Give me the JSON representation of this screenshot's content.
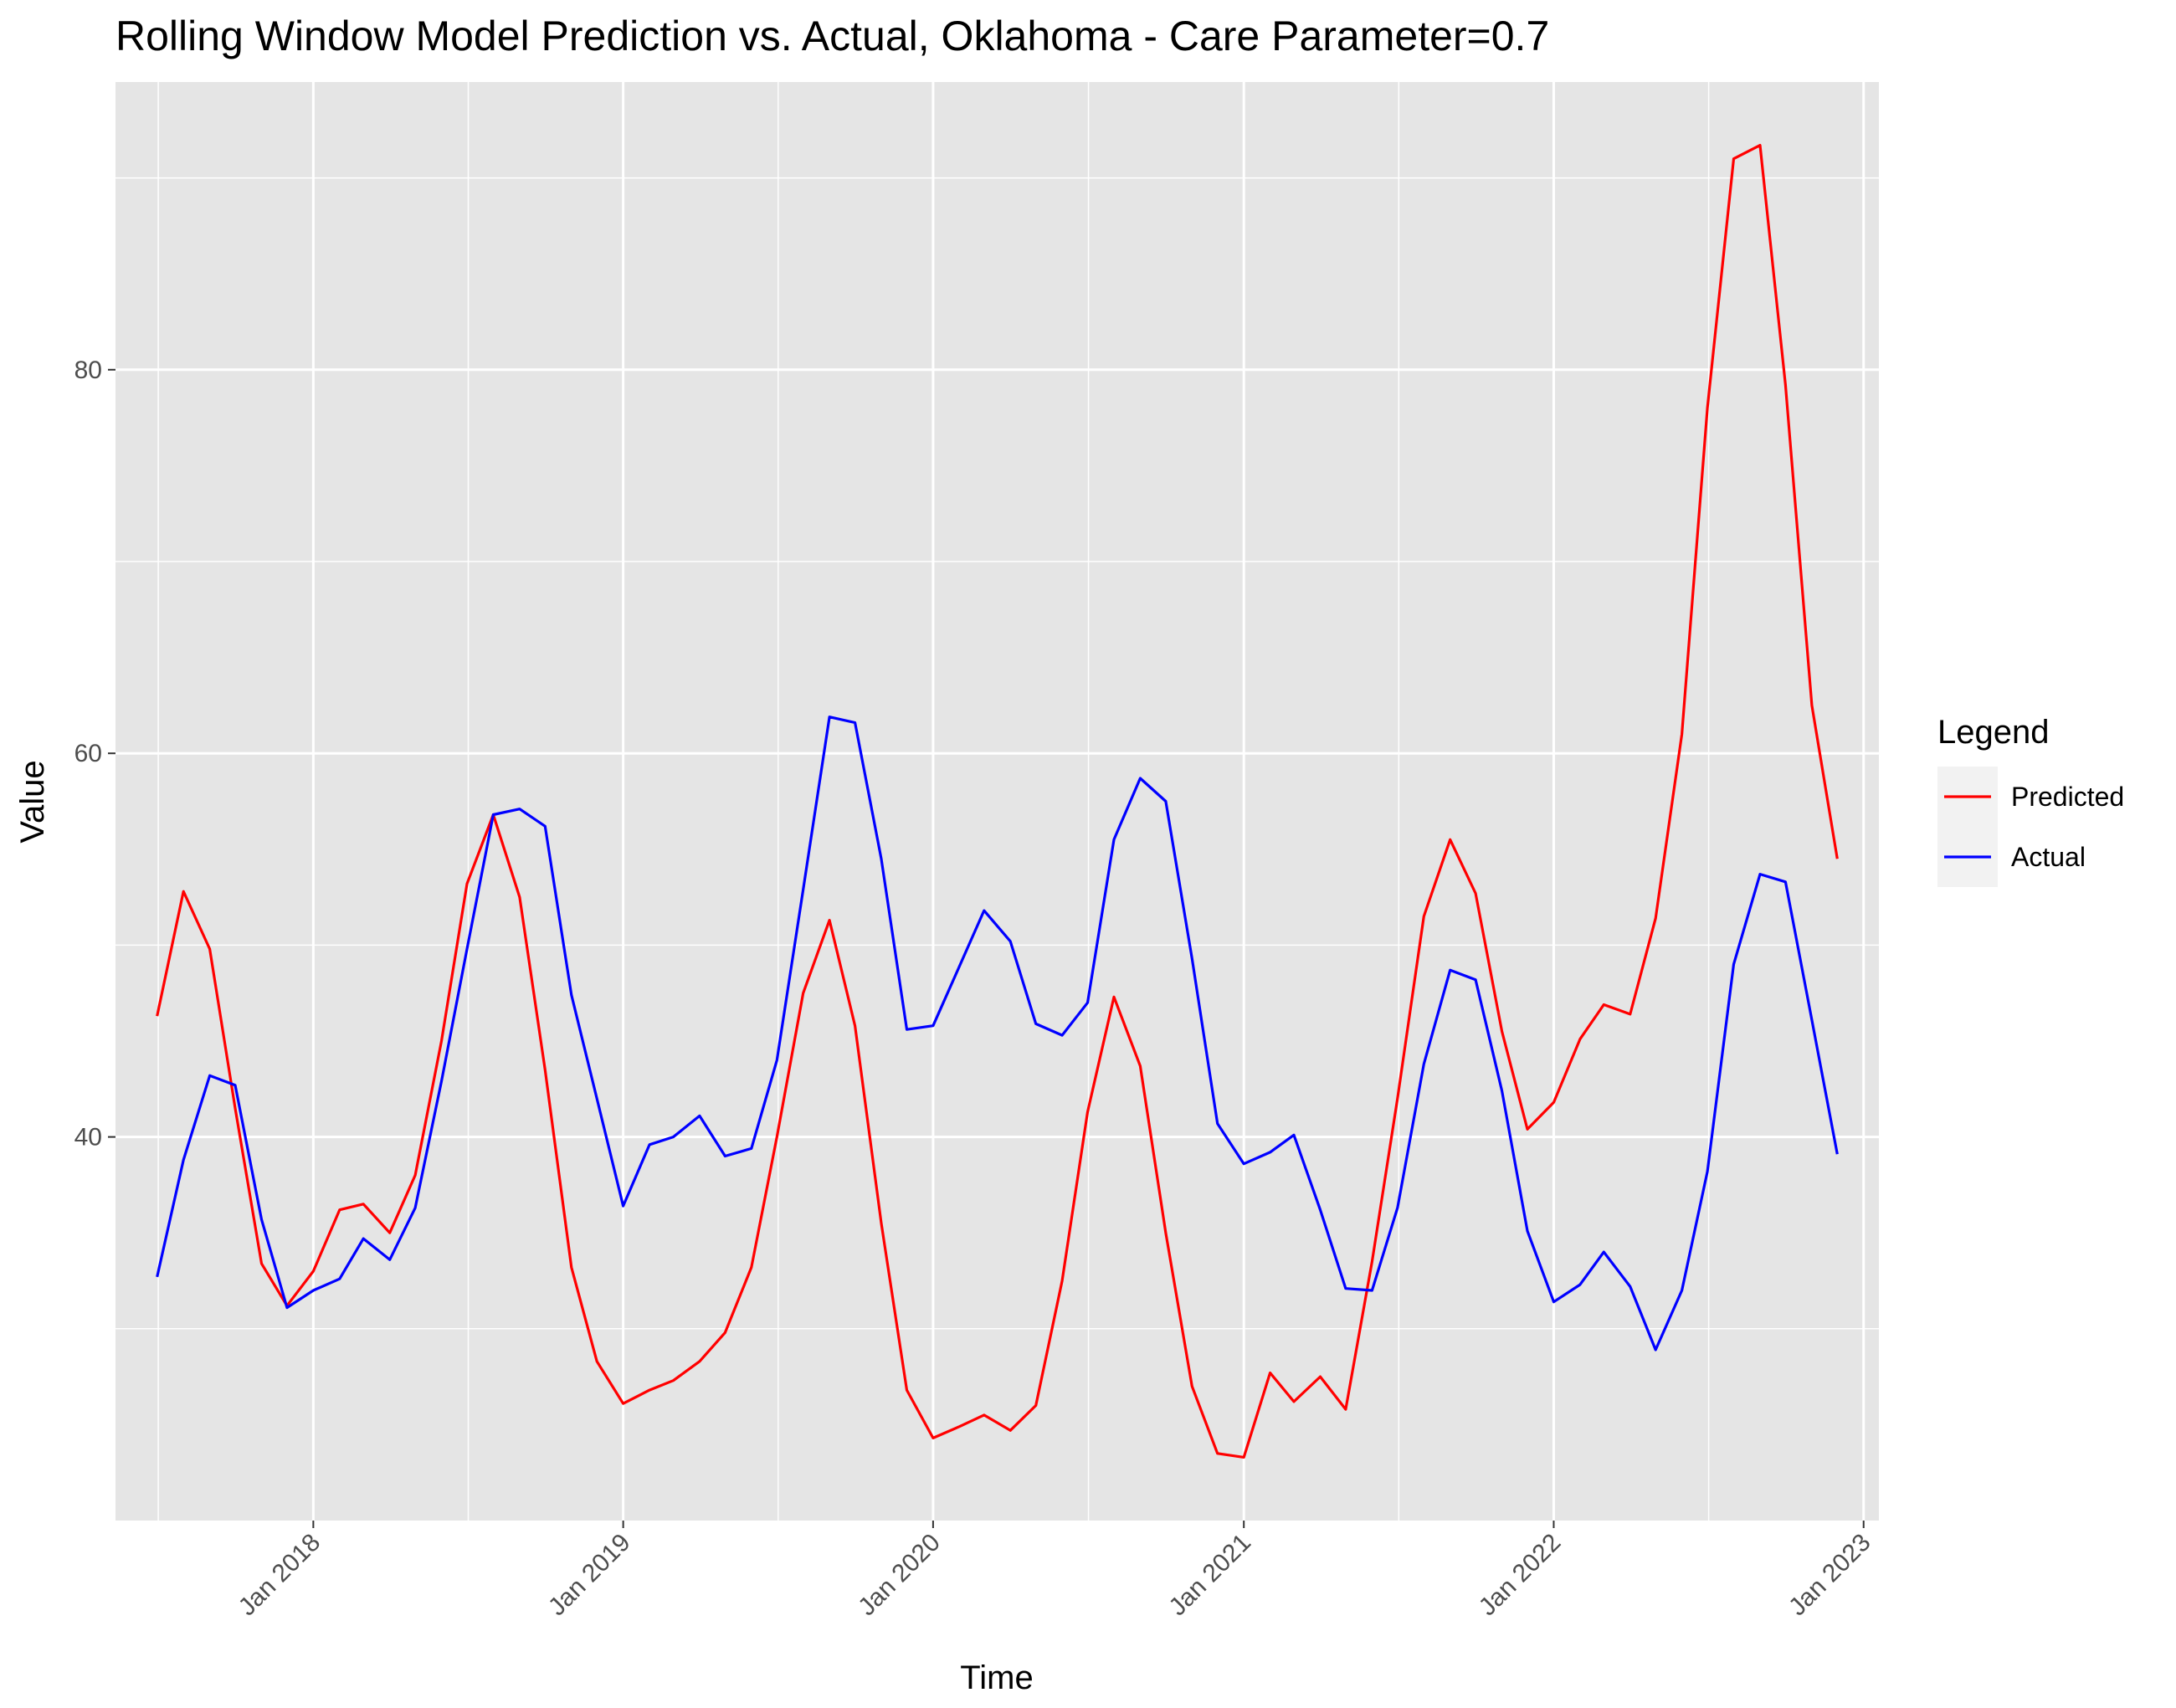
{
  "chart_data": {
    "type": "line",
    "title": "Rolling Window Model Prediction vs. Actual, Oklahoma - Care Parameter=0.7",
    "xlabel": "Time",
    "ylabel": "Value",
    "x_tick_labels": [
      "Jan 2018",
      "Jan 2019",
      "Jan 2020",
      "Jan 2021",
      "Jan 2022",
      "Jan 2023"
    ],
    "y_ticks": [
      40,
      60,
      80
    ],
    "ylim": [
      20,
      95
    ],
    "xlim": [
      "2017-05-13",
      "2023-01-19"
    ],
    "grid": true,
    "legend": {
      "title": "Legend",
      "position": "right"
    },
    "x": [
      "2017-07-01",
      "2017-08-01",
      "2017-09-01",
      "2017-10-01",
      "2017-11-01",
      "2017-12-01",
      "2018-01-01",
      "2018-02-01",
      "2018-03-01",
      "2018-04-01",
      "2018-05-01",
      "2018-06-01",
      "2018-07-01",
      "2018-08-01",
      "2018-09-01",
      "2018-10-01",
      "2018-11-01",
      "2018-12-01",
      "2019-01-01",
      "2019-02-01",
      "2019-03-01",
      "2019-04-01",
      "2019-05-01",
      "2019-06-01",
      "2019-07-01",
      "2019-08-01",
      "2019-09-01",
      "2019-10-01",
      "2019-11-01",
      "2019-12-01",
      "2020-01-01",
      "2020-02-01",
      "2020-03-01",
      "2020-04-01",
      "2020-05-01",
      "2020-06-01",
      "2020-07-01",
      "2020-08-01",
      "2020-09-01",
      "2020-10-01",
      "2020-11-01",
      "2020-12-01",
      "2021-01-01",
      "2021-02-01",
      "2021-03-01",
      "2021-04-01",
      "2021-05-01",
      "2021-06-01",
      "2021-07-01",
      "2021-08-01",
      "2021-09-01",
      "2021-10-01",
      "2021-11-01",
      "2021-12-01",
      "2022-01-01",
      "2022-02-01",
      "2022-03-01",
      "2022-04-01",
      "2022-05-01",
      "2022-06-01",
      "2022-07-01",
      "2022-08-01",
      "2022-09-01",
      "2022-10-01",
      "2022-11-01",
      "2022-12-01"
    ],
    "series": [
      {
        "name": "Predicted",
        "color": "#ff0000",
        "values": [
          46.3,
          52.8,
          49.8,
          41.5,
          33.4,
          31.2,
          33.0,
          36.2,
          36.5,
          35.0,
          38.0,
          45.0,
          53.2,
          56.8,
          52.5,
          43.5,
          33.2,
          28.3,
          26.1,
          26.8,
          27.3,
          28.3,
          29.8,
          33.2,
          40.0,
          47.5,
          51.3,
          45.8,
          35.5,
          26.8,
          24.3,
          24.9,
          25.5,
          24.7,
          26.0,
          32.5,
          41.3,
          47.3,
          43.7,
          35.0,
          27.0,
          23.5,
          23.3,
          27.7,
          26.2,
          27.5,
          25.8,
          33.5,
          42.0,
          51.5,
          55.5,
          52.7,
          45.5,
          40.4,
          41.8,
          45.1,
          46.9,
          46.4,
          51.4,
          61.0,
          78.0,
          91.0,
          91.7,
          79.2,
          62.5,
          54.5
        ]
      },
      {
        "name": "Actual",
        "color": "#0000ff",
        "values": [
          32.7,
          38.8,
          43.2,
          42.7,
          35.7,
          31.1,
          32.0,
          32.6,
          34.7,
          33.6,
          36.3,
          42.9,
          49.8,
          56.8,
          57.1,
          56.2,
          47.4,
          42.0,
          36.4,
          39.6,
          40.0,
          41.1,
          39.0,
          39.4,
          44.0,
          52.9,
          61.9,
          61.6,
          54.5,
          45.6,
          45.8,
          48.9,
          51.8,
          50.2,
          45.9,
          45.3,
          47.0,
          55.5,
          58.7,
          57.5,
          49.3,
          40.7,
          38.6,
          39.2,
          40.1,
          36.2,
          32.1,
          32.0,
          36.3,
          43.8,
          48.7,
          48.2,
          42.4,
          35.1,
          31.4,
          32.3,
          34.0,
          32.2,
          28.9,
          32.0,
          38.2,
          49.0,
          53.7,
          53.3,
          46.1,
          39.1
        ]
      }
    ]
  }
}
